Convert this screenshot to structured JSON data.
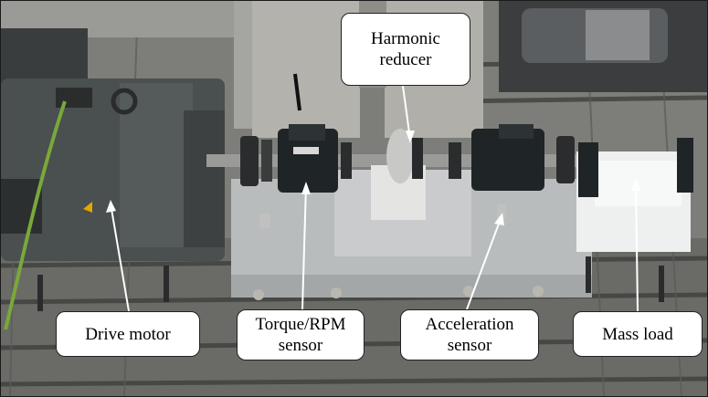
{
  "labels": {
    "drive_motor": "Drive motor",
    "torque_rpm_sensor": "Torque/RPM\nsensor",
    "acceleration_sensor": "Acceleration\nsensor",
    "mass_load": "Mass load",
    "harmonic_reducer": "Harmonic\nreducer"
  },
  "colors": {
    "callout_fill": "#ffffff",
    "arrow": "#ffffff",
    "motor_body": "#4a4f4f",
    "sensor_body": "#1f2426",
    "base_block": "#b9bcbd",
    "mass_load": "#eef0f0",
    "bed_plate": "#6f706c"
  }
}
